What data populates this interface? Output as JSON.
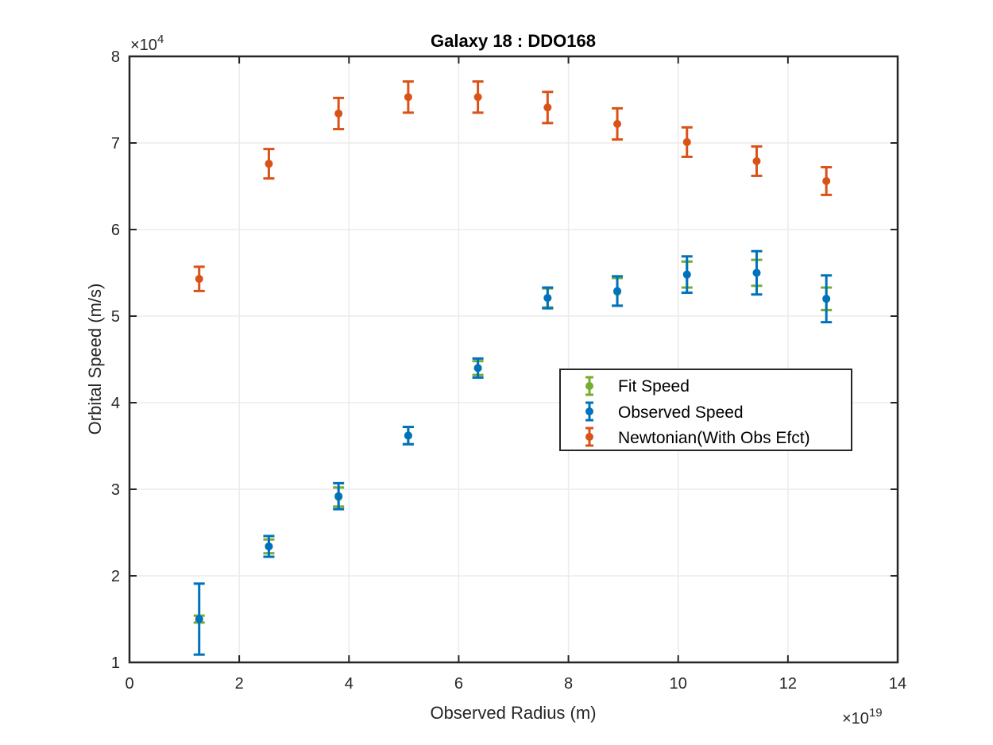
{
  "chart_data": {
    "type": "scatter",
    "title": "Galaxy 18 : DDO168",
    "xlabel": "Observed Radius (m)",
    "ylabel": "Orbital Speed (m/s)",
    "x_multiplier": {
      "base": "×10",
      "exp": "19"
    },
    "y_multiplier": {
      "base": "×10",
      "exp": "4"
    },
    "xlim": [
      0,
      14
    ],
    "ylim": [
      1,
      8
    ],
    "x_ticks": [
      0,
      2,
      4,
      6,
      8,
      10,
      12,
      14
    ],
    "y_ticks": [
      1,
      2,
      3,
      4,
      5,
      6,
      7,
      8
    ],
    "x_tick_labels": [
      "0",
      "2",
      "4",
      "6",
      "8",
      "10",
      "12",
      "14"
    ],
    "y_tick_labels": [
      "1",
      "2",
      "3",
      "4",
      "5",
      "6",
      "7",
      "8"
    ],
    "grid": true,
    "legend_position": "center-right",
    "x": [
      1.27,
      2.54,
      3.81,
      5.08,
      6.35,
      7.62,
      8.89,
      10.16,
      11.43,
      12.7
    ],
    "series": [
      {
        "name": "Fit Speed",
        "color": "#77AC30",
        "y": [
          1.5,
          2.34,
          2.91,
          3.62,
          4.4,
          5.21,
          5.28,
          5.48,
          5.5,
          5.2
        ],
        "err": [
          0.04,
          0.08,
          0.11,
          0.1,
          0.08,
          0.11,
          0.16,
          0.15,
          0.15,
          0.13
        ]
      },
      {
        "name": "Observed Speed",
        "color": "#0072BD",
        "y": [
          1.5,
          2.34,
          2.92,
          3.62,
          4.4,
          5.21,
          5.29,
          5.48,
          5.5,
          5.2
        ],
        "err": [
          0.41,
          0.12,
          0.15,
          0.1,
          0.11,
          0.12,
          0.17,
          0.21,
          0.25,
          0.27
        ]
      },
      {
        "name": "Newtonian(With Obs Efct)",
        "color": "#D95319",
        "y": [
          5.43,
          6.76,
          7.34,
          7.53,
          7.53,
          7.41,
          7.22,
          7.01,
          6.79,
          6.56
        ],
        "err": [
          0.14,
          0.17,
          0.18,
          0.18,
          0.18,
          0.18,
          0.18,
          0.17,
          0.17,
          0.16
        ]
      }
    ]
  }
}
